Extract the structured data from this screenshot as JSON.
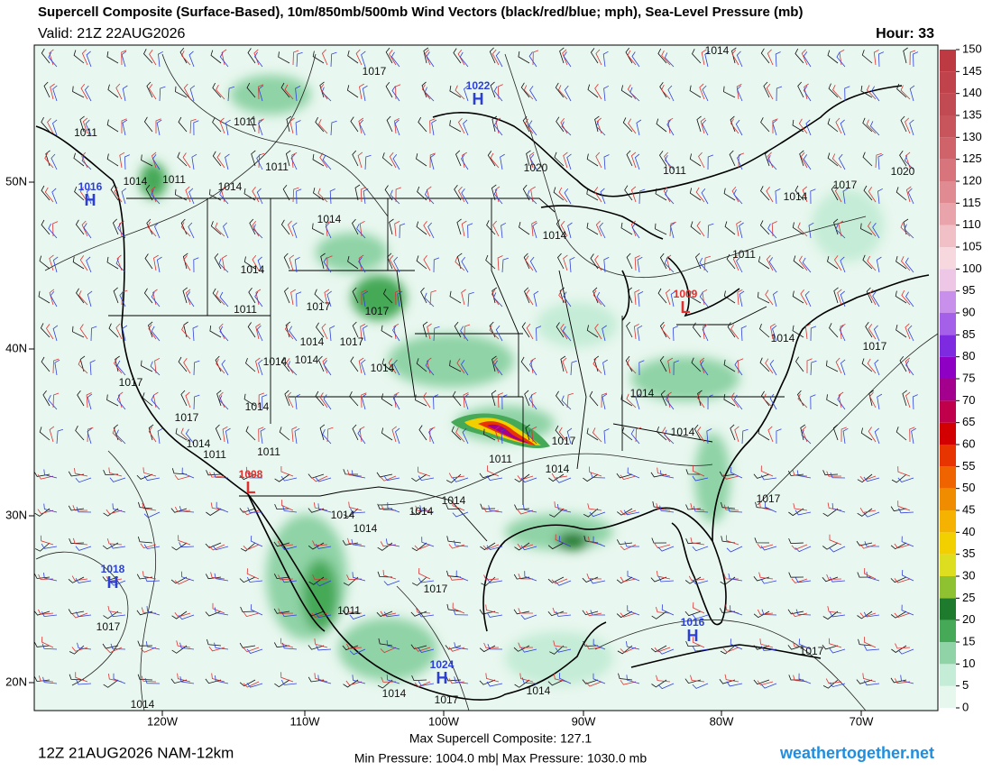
{
  "header": {
    "title": "Supercell Composite (Surface-Based), 10m/850mb/500mb Wind Vectors (black/red/blue; mph), Sea-Level Pressure (mb)",
    "valid": "Valid: 21Z 22AUG2026",
    "hour": "Hour: 33"
  },
  "map": {
    "longitude_labels": [
      "120W",
      "110W",
      "100W",
      "90W",
      "80W",
      "70W"
    ],
    "latitude_labels": [
      "50N",
      "40N",
      "30N",
      "20N"
    ],
    "isobar_labels": [
      1017,
      1014,
      1011,
      1011,
      1011,
      1014,
      1011,
      1014,
      1020,
      1011,
      1014,
      1017,
      1020,
      1014,
      1014,
      1011,
      1017,
      1017,
      1014,
      1011,
      1014,
      1017,
      1014,
      1014,
      1014,
      1017,
      1014,
      1017,
      1014,
      1011,
      1011,
      1014,
      1014,
      1017,
      1017,
      1011,
      1014,
      1014,
      1014,
      1014,
      1014,
      1014,
      1017,
      1017,
      1011,
      1017,
      1017,
      1014,
      1017,
      1014,
      1014
    ],
    "pressure_centers": [
      {
        "symbol": "H",
        "pressure": 1022,
        "color": "#2b3fd6"
      },
      {
        "symbol": "H",
        "pressure": 1016,
        "color": "#2b3fd6"
      },
      {
        "symbol": "L",
        "pressure": 1008,
        "color": "#e03030"
      },
      {
        "symbol": "L",
        "pressure": 1009,
        "color": "#e03030"
      },
      {
        "symbol": "H",
        "pressure": 1018,
        "color": "#2b3fd6"
      },
      {
        "symbol": "H",
        "pressure": 1016,
        "color": "#2b3fd6"
      },
      {
        "symbol": "H",
        "pressure": 1024,
        "color": "#2b3fd6"
      }
    ]
  },
  "colorbar": {
    "ticks": [
      0,
      5,
      10,
      15,
      20,
      25,
      30,
      35,
      40,
      45,
      50,
      55,
      60,
      65,
      70,
      75,
      80,
      85,
      90,
      95,
      100,
      105,
      110,
      115,
      120,
      125,
      130,
      135,
      140,
      145,
      150
    ],
    "colors": [
      "#e6f7ee",
      "#c4ecd6",
      "#8fd3a6",
      "#45a957",
      "#1e7a2c",
      "#8fc230",
      "#dede20",
      "#f2d000",
      "#f5b200",
      "#f08c00",
      "#f06400",
      "#e83400",
      "#d20000",
      "#c0004a",
      "#a3008e",
      "#8e00c4",
      "#7e2ae0",
      "#a560ea",
      "#c890ea",
      "#eec6e6",
      "#f6d8de",
      "#f0c0c6",
      "#e8a4aa",
      "#e08a92",
      "#d8747c",
      "#d0626a",
      "#c8545c",
      "#c24a52",
      "#c0424a",
      "#be3a42"
    ]
  },
  "footer": {
    "run": "12Z 21AUG2026 NAM-12km",
    "max_composite": "Max Supercell Composite: 127.1",
    "pressure_range": "Min Pressure: 1004.0 mb| Max Pressure: 1030.0 mb",
    "site": "weathertogether.net"
  }
}
